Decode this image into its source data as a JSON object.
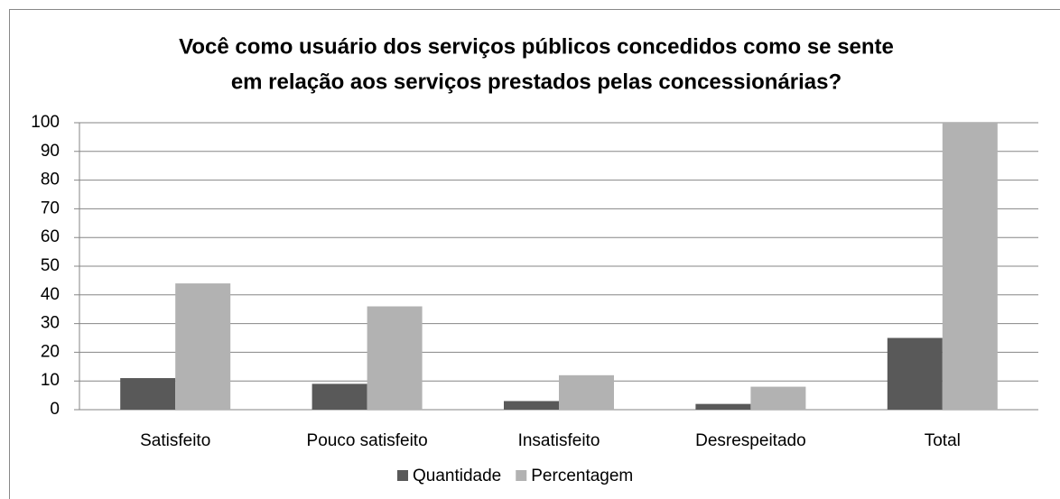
{
  "chart_data": {
    "type": "bar",
    "title": [
      "Você como usuário dos serviços públicos concedidos como se sente",
      "em relação aos serviços prestados pelas concessionárias?"
    ],
    "categories": [
      "Satisfeito",
      "Pouco satisfeito",
      "Insatisfeito",
      "Desrespeitado",
      "Total"
    ],
    "series": [
      {
        "name": "Quantidade",
        "color": "#595959",
        "values": [
          11,
          9,
          3,
          2,
          25
        ]
      },
      {
        "name": "Percentagem",
        "color": "#b2b2b2",
        "values": [
          44,
          36,
          12,
          8,
          100
        ]
      }
    ],
    "ylim": [
      0,
      100
    ],
    "yticks": [
      0,
      10,
      20,
      30,
      40,
      50,
      60,
      70,
      80,
      90,
      100
    ],
    "grid": true,
    "legend": "bottom"
  }
}
